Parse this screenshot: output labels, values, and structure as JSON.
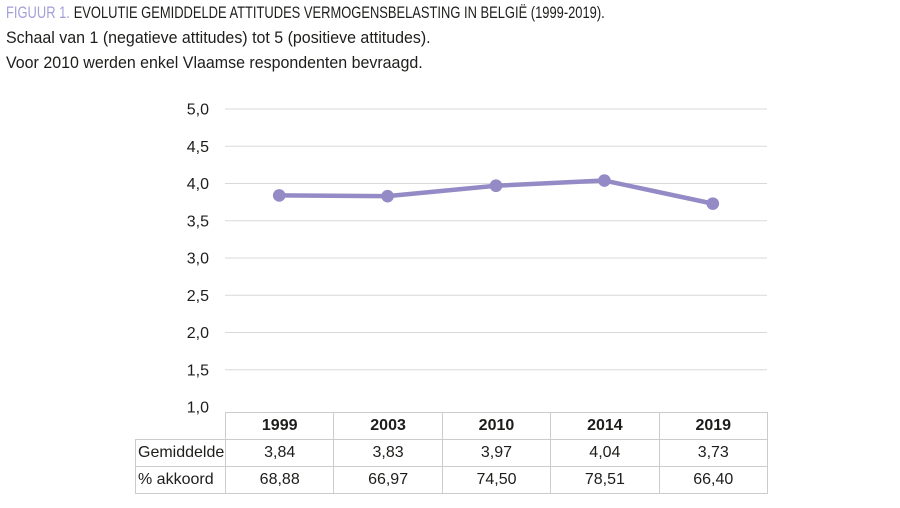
{
  "caption": {
    "label": "FIGUUR 1.",
    "title": "EVOLUTIE GEMIDDELDE ATTITUDES VERMOGENSBELASTING IN BELGIË (1999-2019).",
    "subtitle1": "Schaal van 1 (negatieve attitudes) tot 5 (positieve attitudes).",
    "subtitle2": "Voor 2010 werden enkel Vlaamse respondenten bevraagd."
  },
  "chart_data": {
    "type": "line",
    "categories": [
      "1999",
      "2003",
      "2010",
      "2014",
      "2019"
    ],
    "series": [
      {
        "name": "Gemiddelde",
        "values": [
          3.84,
          3.83,
          3.97,
          4.04,
          3.73
        ]
      },
      {
        "name": "% akkoord",
        "values": [
          68.88,
          66.97,
          74.5,
          78.51,
          66.4
        ]
      }
    ],
    "plotted_series": "Gemiddelde",
    "ylim": [
      1.0,
      5.0
    ],
    "ytick_step": 0.5,
    "ytick_labels": [
      "5,0",
      "4,5",
      "4,0",
      "3,5",
      "3,0",
      "2,5",
      "2,0",
      "1,5",
      "1,0"
    ],
    "grid": true,
    "legend_position": "none",
    "line_color": "#948bc6",
    "gridline_color": "#d9d9d9"
  },
  "table": {
    "columns": [
      "1999",
      "2003",
      "2010",
      "2014",
      "2019"
    ],
    "rows": [
      {
        "label": "Gemiddelde",
        "values": [
          "3,84",
          "3,83",
          "3,97",
          "4,04",
          "3,73"
        ]
      },
      {
        "label": "% akkoord",
        "values": [
          "68,88",
          "66,97",
          "74,50",
          "78,51",
          "66,40"
        ]
      }
    ]
  },
  "colors": {
    "figure_label": "#a39fd6",
    "title_text": "#1d1d1b",
    "line": "#948bc6",
    "gridline": "#d9d9d9",
    "table_border": "#cccccc",
    "background": "#ffffff"
  }
}
